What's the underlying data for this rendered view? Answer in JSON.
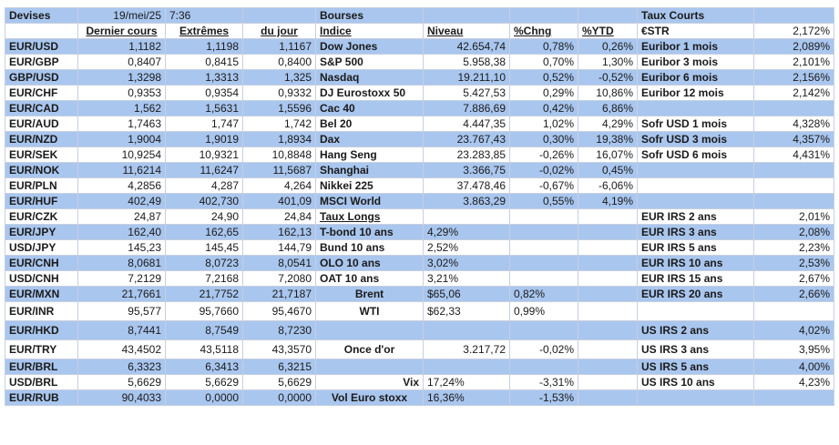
{
  "header": {
    "devises": "Devises",
    "date": "19/mei/25",
    "time": "7:36",
    "bourses": "Bourses",
    "taux_courts": "Taux Courts"
  },
  "columns": {
    "dernier": "Dernier cours",
    "extremes": "Extrêmes",
    "du_jour": "du jour",
    "indice": "Indice",
    "niveau": "Niveau",
    "chng": "%Chng",
    "ytd": "%YTD",
    "estr": "€STR",
    "estr_val": "2,172%"
  },
  "rows": [
    [
      "EUR/USD",
      "1,1182",
      "1,1198",
      "1,1167",
      "Dow Jones",
      "42.654,74",
      "0,78%",
      "0,26%",
      "Euribor 1 mois",
      "2,089%"
    ],
    [
      "EUR/GBP",
      "0,8407",
      "0,8415",
      "0,8400",
      "S&P 500",
      "5.958,38",
      "0,70%",
      "1,30%",
      "Euribor 3 mois",
      "2,101%"
    ],
    [
      "GBP/USD",
      "1,3298",
      "1,3313",
      "1,325",
      "Nasdaq",
      "19.211,10",
      "0,52%",
      "-0,52%",
      "Euribor 6 mois",
      "2,156%"
    ],
    [
      "EUR/CHF",
      "0,9353",
      "0,9354",
      "0,9332",
      "DJ Eurostoxx 50",
      "5.427,53",
      "0,29%",
      "10,86%",
      "Euribor 12 mois",
      "2,142%"
    ],
    [
      "EUR/CAD",
      "1,562",
      "1,5631",
      "1,5596",
      "Cac 40",
      "7.886,69",
      "0,42%",
      "6,86%",
      "",
      ""
    ],
    [
      "EUR/AUD",
      "1,7463",
      "1,747",
      "1,742",
      "Bel 20",
      "4.447,35",
      "1,02%",
      "4,29%",
      "Sofr USD 1 mois",
      "4,328%"
    ],
    [
      "EUR/NZD",
      "1,9004",
      "1,9019",
      "1,8934",
      "Dax",
      "23.767,43",
      "0,30%",
      "19,38%",
      "Sofr USD 3 mois",
      "4,357%"
    ],
    [
      "EUR/SEK",
      "10,9254",
      "10,9321",
      "10,8848",
      "Hang Seng",
      "23.283,85",
      "-0,26%",
      "16,07%",
      "Sofr USD 6 mois",
      "4,431%"
    ],
    [
      "EUR/NOK",
      "11,6214",
      "11,6247",
      "11,5687",
      "Shanghai",
      "3.366,75",
      "-0,02%",
      "0,45%",
      "",
      ""
    ],
    [
      "EUR/PLN",
      "4,2856",
      "4,287",
      "4,264",
      "Nikkei 225",
      "37.478,46",
      "-0,67%",
      "-6,06%",
      "",
      ""
    ],
    [
      "EUR/HUF",
      "402,49",
      "402,730",
      "401,09",
      "MSCI World",
      "3.863,29",
      "0,55%",
      "4,19%",
      "",
      ""
    ],
    [
      "EUR/CZK",
      "24,87",
      "24,90",
      "24,84",
      "Taux Longs",
      "",
      "",
      "",
      "EUR IRS 2 ans",
      "2,01%"
    ],
    [
      "EUR/JPY",
      "162,40",
      "162,65",
      "162,13",
      "T-bond 10 ans",
      "4,29%",
      "",
      "",
      "EUR IRS 3 ans",
      "2,08%"
    ],
    [
      "USD/JPY",
      "145,23",
      "145,45",
      "144,79",
      "Bund 10 ans",
      "2,52%",
      "",
      "",
      "EUR IRS 5 ans",
      "2,23%"
    ],
    [
      "EUR/CNH",
      "8,0681",
      "8,0723",
      "8,0541",
      "OLO 10 ans",
      "3,02%",
      "",
      "",
      "EUR IRS 10 ans",
      "2,53%"
    ],
    [
      "USD/CNH",
      "7,2129",
      "7,2168",
      "7,2080",
      "OAT 10 ans",
      "3,21%",
      "",
      "",
      "EUR IRS 15 ans",
      "2,67%"
    ],
    [
      "EUR/MXN",
      "21,7661",
      "21,7752",
      "21,7187",
      "Brent",
      "$65,06",
      "0,82%",
      "",
      "EUR IRS 20 ans",
      "2,66%"
    ],
    [
      "EUR/INR",
      "95,577",
      "95,7660",
      "95,4670",
      "WTI",
      "$62,33",
      "0,99%",
      "",
      "",
      ""
    ],
    [
      "EUR/HKD",
      "8,7441",
      "8,7549",
      "8,7230",
      "",
      "",
      "",
      "",
      "US IRS 2 ans",
      "4,02%"
    ],
    [
      "EUR/TRY",
      "43,4502",
      "43,5118",
      "43,3570",
      "Once d'or",
      "3.217,72",
      "-0,02%",
      "",
      "US IRS 3 ans",
      "3,95%"
    ],
    [
      "EUR/BRL",
      "6,3323",
      "6,3413",
      "6,3215",
      "",
      "",
      "",
      "",
      "US IRS 5 ans",
      "4,00%"
    ],
    [
      "USD/BRL",
      "5,6629",
      "5,6629",
      "5,6629",
      "Vix",
      "17,24%",
      "-3,31%",
      "",
      "US IRS 10 ans",
      "4,23%"
    ],
    [
      "EUR/RUB",
      "90,4033",
      "0,0000",
      "0,0000",
      "Vol Euro stoxx",
      "16,36%",
      "-1,53%",
      "",
      "",
      " "
    ]
  ]
}
